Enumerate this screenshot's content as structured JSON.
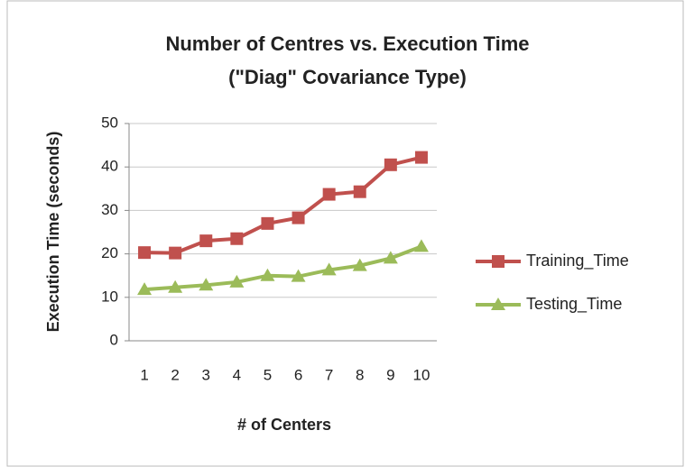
{
  "chart_data": {
    "type": "line",
    "title": [
      "Number of Centres vs. Execution Time",
      "(\"Diag\" Covariance Type)"
    ],
    "x_label": "# of Centers",
    "y_label": "Execution Time (seconds)",
    "categories": [
      "1",
      "2",
      "3",
      "4",
      "5",
      "6",
      "7",
      "8",
      "9",
      "10"
    ],
    "series": [
      {
        "name": "Training_Time",
        "color": "#c0504d",
        "marker": "square",
        "values": [
          20.3,
          20.2,
          23,
          23.5,
          27,
          28.3,
          33.7,
          34.3,
          40.5,
          42.2
        ]
      },
      {
        "name": "Testing_Time",
        "color": "#9bbb59",
        "marker": "triangle",
        "values": [
          11.8,
          12.3,
          12.8,
          13.5,
          15,
          14.8,
          16.3,
          17.3,
          19,
          21.7
        ]
      }
    ],
    "ylim": [
      0,
      50
    ],
    "yticks": [
      0,
      10,
      20,
      30,
      40,
      50
    ],
    "grid": true,
    "legend": "right"
  }
}
